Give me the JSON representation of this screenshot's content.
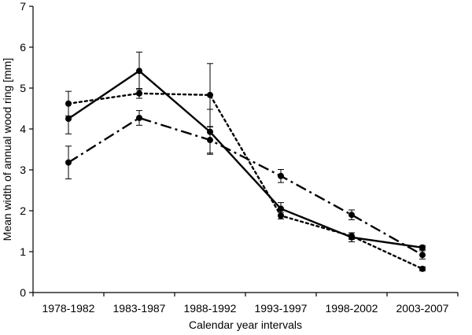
{
  "chart_data": {
    "type": "line",
    "title": "",
    "xlabel": "Calendar year intervals",
    "ylabel": "Mean width of annual wood ring [mm]",
    "ylim": [
      0,
      7
    ],
    "yticks": [
      0,
      1,
      2,
      3,
      4,
      5,
      6,
      7
    ],
    "grid": false,
    "legend": "none",
    "categories": [
      "1978-1982",
      "1983-1987",
      "1988-1992",
      "1993-1997",
      "1998-2002",
      "2003-2007"
    ],
    "series": [
      {
        "style": "solid",
        "values": [
          4.25,
          5.42,
          3.93,
          2.05,
          1.35,
          1.1
        ],
        "errors": [
          0.37,
          0.46,
          0.55,
          0.15,
          0.11,
          0.05
        ]
      },
      {
        "style": "dotted",
        "values": [
          4.62,
          4.87,
          4.83,
          1.88,
          1.38,
          0.58
        ],
        "errors": [
          0.3,
          0.12,
          0.77,
          0.08,
          0.08,
          0.05
        ]
      },
      {
        "style": "dash-dot",
        "values": [
          3.18,
          4.27,
          3.73,
          2.85,
          1.9,
          0.92
        ],
        "errors": [
          0.4,
          0.18,
          0.32,
          0.16,
          0.12,
          0.1
        ]
      }
    ]
  }
}
